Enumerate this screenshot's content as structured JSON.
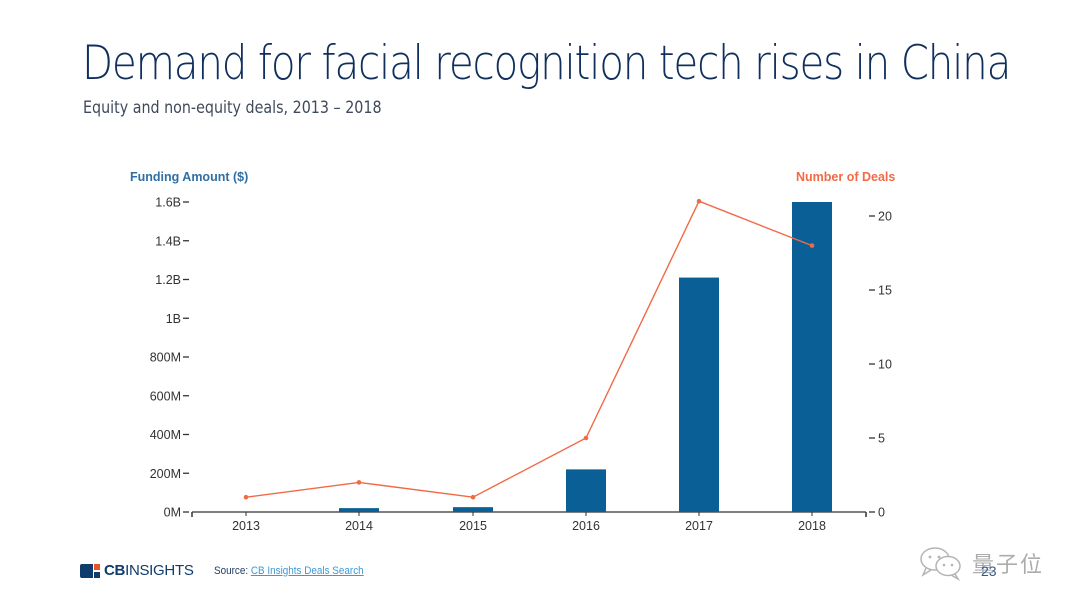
{
  "slide": {
    "title": "Demand for facial recognition tech rises in China",
    "subtitle": "Equity and non-equity deals, 2013 – 2018",
    "page_number": "23"
  },
  "footer": {
    "logo_bold": "CB",
    "logo_light": "INSIGHTS",
    "source_label": "Source: ",
    "source_link": "CB Insights Deals Search"
  },
  "watermark": {
    "icon": "wechat-icon",
    "text": "量子位"
  },
  "colors": {
    "bar": "#0a6096",
    "line": "#f26a45",
    "title": "#0f2f5c",
    "left_axis_title": "#2f6fa5",
    "right_axis_title": "#f26a45"
  },
  "chart_data": {
    "type": "bar+line",
    "title": "Demand for facial recognition tech rises in China",
    "subtitle": "Equity and non-equity deals, 2013 – 2018",
    "categories": [
      "2013",
      "2014",
      "2015",
      "2016",
      "2017",
      "2018"
    ],
    "series": [
      {
        "name": "Funding Amount ($)",
        "type": "bar",
        "axis": "left",
        "values": [
          0,
          20000000,
          25000000,
          220000000,
          1210000000,
          1600000000
        ]
      },
      {
        "name": "Number of Deals",
        "type": "line",
        "axis": "right",
        "values": [
          1,
          2,
          1,
          5,
          21,
          18
        ]
      }
    ],
    "left_axis": {
      "label": "Funding Amount ($)",
      "range": [
        0,
        1600000000
      ],
      "ticks": [
        0,
        200000000,
        400000000,
        600000000,
        800000000,
        1000000000,
        1200000000,
        1400000000,
        1600000000
      ],
      "tick_labels": [
        "0M",
        "200M",
        "400M",
        "600M",
        "800M",
        "1B",
        "1.2B",
        "1.4B",
        "1.6B"
      ]
    },
    "right_axis": {
      "label": "Number of Deals",
      "range": [
        0,
        21
      ],
      "ticks": [
        0,
        5,
        10,
        15,
        20
      ],
      "tick_labels": [
        "0",
        "5",
        "10",
        "15",
        "20"
      ]
    },
    "grid": false,
    "legend": "none"
  }
}
